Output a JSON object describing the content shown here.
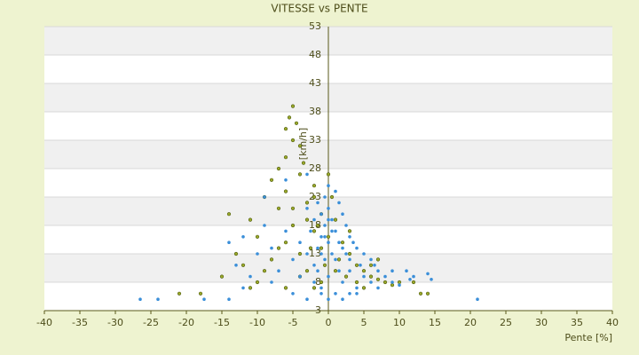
{
  "chart_data": {
    "type": "scatter",
    "title": "VITESSE vs PENTE",
    "xlabel": "Pente [%]",
    "ylabel": "[km/h]",
    "xlim": [
      -40,
      40
    ],
    "xticks": [
      -40,
      -35,
      -30,
      -25,
      -20,
      -15,
      -10,
      -5,
      0,
      5,
      10,
      15,
      20,
      25,
      30,
      35,
      40
    ],
    "ylim": [
      3,
      53
    ],
    "yticks": [
      3,
      8,
      13,
      18,
      23,
      28,
      33,
      38,
      43,
      48,
      53
    ],
    "grid": true,
    "series": [
      {
        "color": "#9aa82a",
        "x": [
          -5,
          -5.5,
          -4.5,
          -6,
          -5,
          -4,
          -6,
          -3.5,
          -7,
          -4,
          -8,
          -2,
          -6,
          -9,
          -3,
          -7,
          -14,
          -11,
          -5,
          -2,
          -10,
          -6,
          -1,
          -4,
          -8,
          -12,
          -3,
          -15,
          -10,
          -6,
          -2,
          -21,
          -18,
          -11,
          0,
          1,
          2,
          3,
          4,
          5,
          6,
          7,
          8,
          9,
          10,
          12,
          13,
          14,
          -1,
          0.5,
          1.5,
          2.5,
          -0.5,
          -2.5,
          -1.5,
          0,
          -3,
          3,
          4,
          6,
          -4,
          -7,
          -9,
          -13,
          -5,
          -2,
          1,
          -1,
          5,
          7
        ],
        "values": [
          39,
          37,
          36,
          35,
          33,
          32,
          30,
          29,
          28,
          27,
          26,
          25,
          24,
          23,
          22,
          21,
          20,
          19,
          18,
          17,
          16,
          15,
          14,
          13,
          12,
          11,
          10,
          9,
          8,
          7,
          7,
          6,
          6,
          7,
          16,
          19,
          15,
          13,
          11,
          10,
          9,
          8.5,
          8,
          7.5,
          8,
          8,
          6,
          6,
          20,
          23,
          12,
          9,
          11,
          14,
          18,
          27,
          19,
          17,
          8,
          11,
          9,
          14,
          10,
          13,
          21,
          23,
          10,
          8,
          7,
          12
        ]
      },
      {
        "color": "#3b8fd9",
        "x": [
          -26.5,
          -24,
          -17.5,
          -14,
          21,
          14.5,
          14,
          12,
          11.5,
          10,
          9,
          8,
          7,
          6.5,
          6,
          5,
          4.5,
          4,
          3.5,
          3,
          3,
          2.5,
          2,
          2,
          1.5,
          1.5,
          1,
          1,
          0.5,
          0.5,
          0,
          0,
          0,
          0,
          -0.5,
          -0.5,
          -0.5,
          -1,
          -1,
          -1,
          -1.5,
          -1.5,
          -2,
          -2,
          -2.5,
          -3,
          -3,
          -4,
          -5,
          -6,
          -7,
          -8,
          -9,
          -10,
          -11,
          -12,
          -13,
          -14,
          -9,
          -6,
          -3,
          -1,
          1,
          3,
          4,
          2,
          -2,
          -4,
          5,
          6,
          7,
          3,
          1,
          -0.5,
          0.5,
          1.5,
          2.5,
          0,
          -1,
          -1.5,
          -8,
          -12,
          -5,
          -3,
          0,
          2,
          4,
          9,
          11
        ],
        "values": [
          5,
          5,
          5,
          5,
          5,
          8.5,
          9.5,
          9,
          8.5,
          7.5,
          8,
          9,
          10,
          11,
          12,
          13,
          11,
          14,
          15,
          16,
          12,
          18,
          20,
          14,
          22,
          10,
          24,
          17,
          19,
          13,
          25,
          21,
          15,
          9,
          23,
          18,
          12,
          20,
          16,
          7,
          22,
          14,
          19,
          11,
          17,
          21,
          13,
          15,
          12,
          17,
          10,
          14,
          18,
          13,
          9,
          16,
          11,
          15,
          23,
          26,
          27,
          6,
          6,
          6,
          7,
          8,
          8,
          9,
          9,
          8,
          7,
          10,
          12,
          16,
          17,
          15,
          13,
          19,
          13,
          10,
          8,
          7,
          6,
          5,
          5,
          5,
          6,
          10,
          10
        ]
      }
    ]
  }
}
